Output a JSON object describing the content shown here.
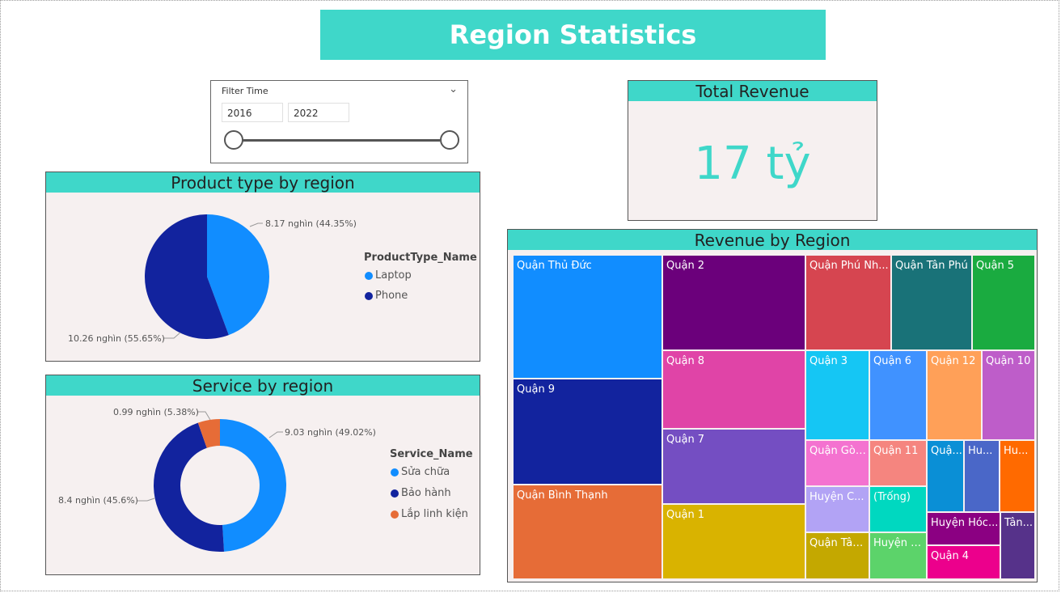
{
  "header": {
    "title": "Region Statistics"
  },
  "filter": {
    "title": "Filter Time",
    "start": "2016",
    "end": "2022",
    "range": [
      2016,
      2022
    ],
    "selected": [
      2016,
      2022
    ]
  },
  "revenue_card": {
    "title": "Total Revenue",
    "value": "17 tỷ"
  },
  "colors": {
    "accent": "#3fd7c9",
    "panel_bg": "#f6f0f0"
  },
  "chart_data": [
    {
      "type": "pie",
      "title": "Product type by region",
      "legend_title": "ProductType_Name",
      "legend_position": "right",
      "slices": [
        {
          "name": "Laptop",
          "value": 8.17,
          "label": "8.17 nghìn (44.35%)",
          "color": "#118dff"
        },
        {
          "name": "Phone",
          "value": 10.26,
          "label": "10.26 nghìn (55.65%)",
          "color": "#12239e"
        }
      ]
    },
    {
      "type": "pie",
      "donut": true,
      "title": "Service by region",
      "legend_title": "Service_Name",
      "legend_position": "right",
      "slices": [
        {
          "name": "Sửa chữa",
          "value": 9.03,
          "label": "9.03 nghìn (49.02%)",
          "color": "#118dff"
        },
        {
          "name": "Bảo hành",
          "value": 8.4,
          "label": "8.4 nghìn (45.6%)",
          "color": "#12239e"
        },
        {
          "name": "Lắp linh kiện",
          "value": 0.99,
          "label": "0.99 nghìn (5.38%)",
          "color": "#e66c37"
        }
      ]
    },
    {
      "type": "treemap",
      "title": "Revenue by Region",
      "tiles": [
        {
          "name": "Quận Thủ Đức",
          "color": "#118dff"
        },
        {
          "name": "Quận 9",
          "color": "#12239e"
        },
        {
          "name": "Quận Bình Thạnh",
          "color": "#e66c37"
        },
        {
          "name": "Quận 2",
          "color": "#6b007b"
        },
        {
          "name": "Quận 8",
          "color": "#e044a7"
        },
        {
          "name": "Quận 7",
          "color": "#744ec2"
        },
        {
          "name": "Quận 1",
          "color": "#d9b300"
        },
        {
          "name": "Quận Phú Nh...",
          "color": "#d64550"
        },
        {
          "name": "Quận Tân Phú",
          "color": "#197278"
        },
        {
          "name": "Quận 5",
          "color": "#1aab40"
        },
        {
          "name": "Quận 3",
          "color": "#15c6f4"
        },
        {
          "name": "Quận 6",
          "color": "#4092ff"
        },
        {
          "name": "Quận 12",
          "color": "#ffa058"
        },
        {
          "name": "Quận 10",
          "color": "#be5dc9"
        },
        {
          "name": "Quận Gò ...",
          "color": "#f472d0"
        },
        {
          "name": "Quận 11",
          "color": "#f5857f"
        },
        {
          "name": "Quậ...",
          "color": "#0a8fd6"
        },
        {
          "name": "Hu...",
          "color": "#4a67c8"
        },
        {
          "name": "Hu...",
          "color": "#ff6a00"
        },
        {
          "name": "Huyện C...",
          "color": "#b2a3f5"
        },
        {
          "name": "(Trống)",
          "color": "#00d8c0"
        },
        {
          "name": "Huyện Hóc...",
          "color": "#8b0082"
        },
        {
          "name": "Tân...",
          "color": "#56328a"
        },
        {
          "name": "Quận Tân...",
          "color": "#c4a800"
        },
        {
          "name": "Huyện N...",
          "color": "#5cd36a"
        },
        {
          "name": "Quận 4",
          "color": "#ec008c"
        }
      ]
    }
  ]
}
